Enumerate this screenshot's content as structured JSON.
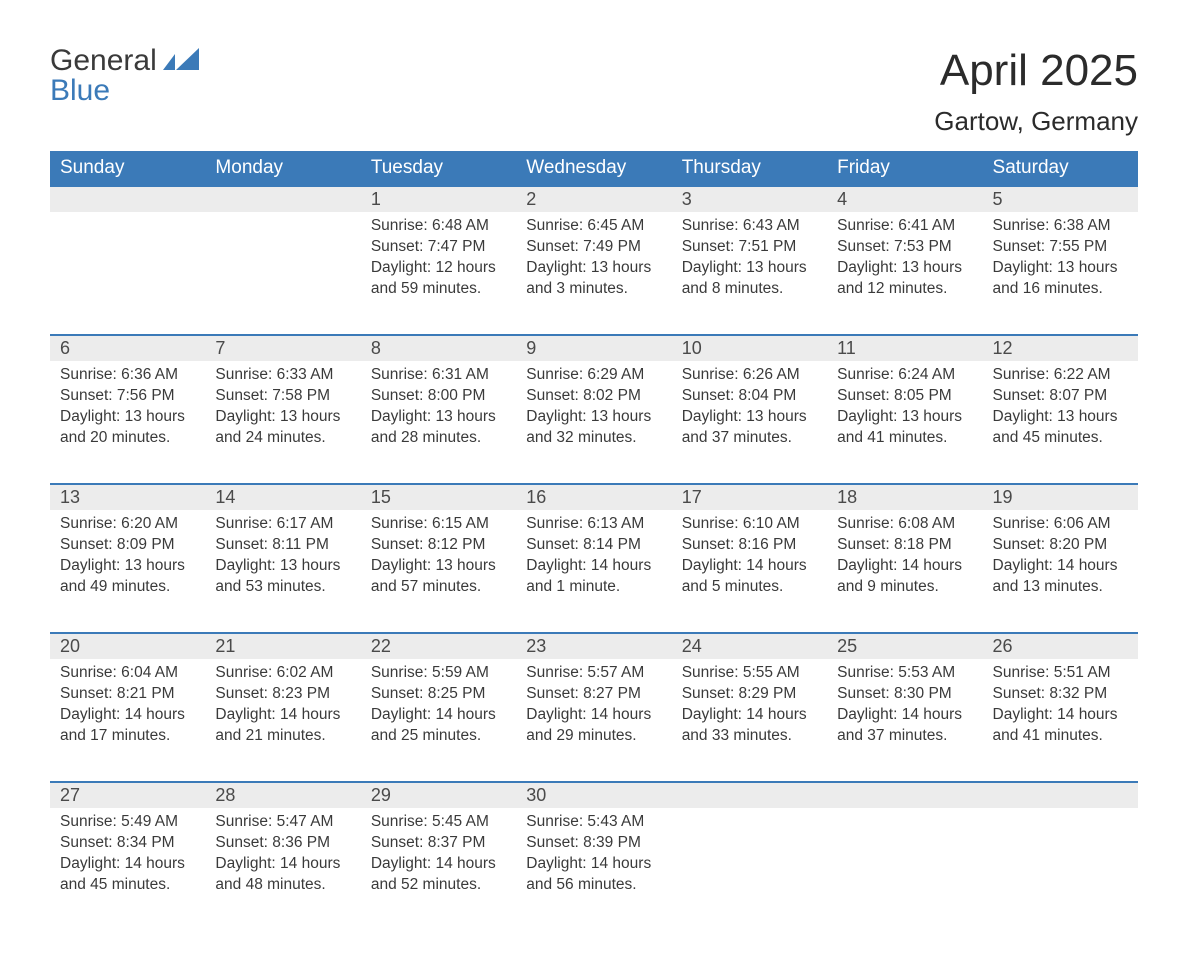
{
  "brand": {
    "word1": "General",
    "word2": "Blue",
    "text_color": "#3a3a3a",
    "accent_color": "#3b7ab8"
  },
  "header": {
    "month_title": "April 2025",
    "location": "Gartow, Germany"
  },
  "colors": {
    "header_bg": "#3b7ab8",
    "header_text": "#ffffff",
    "daynum_bg": "#ececec",
    "row_divider": "#3b7ab8",
    "body_text": "#3a3a3a",
    "page_bg": "#ffffff"
  },
  "typography": {
    "month_title_fontsize": 44,
    "location_fontsize": 26,
    "dayheader_fontsize": 19,
    "daynum_fontsize": 18,
    "body_fontsize": 15.5
  },
  "calendar": {
    "type": "table",
    "columns": [
      "Sunday",
      "Monday",
      "Tuesday",
      "Wednesday",
      "Thursday",
      "Friday",
      "Saturday"
    ],
    "first_weekday_index": 2,
    "days_in_month": 30,
    "weeks": [
      [
        null,
        null,
        {
          "n": "1",
          "sunrise": "6:48 AM",
          "sunset": "7:47 PM",
          "daylight": "12 hours and 59 minutes."
        },
        {
          "n": "2",
          "sunrise": "6:45 AM",
          "sunset": "7:49 PM",
          "daylight": "13 hours and 3 minutes."
        },
        {
          "n": "3",
          "sunrise": "6:43 AM",
          "sunset": "7:51 PM",
          "daylight": "13 hours and 8 minutes."
        },
        {
          "n": "4",
          "sunrise": "6:41 AM",
          "sunset": "7:53 PM",
          "daylight": "13 hours and 12 minutes."
        },
        {
          "n": "5",
          "sunrise": "6:38 AM",
          "sunset": "7:55 PM",
          "daylight": "13 hours and 16 minutes."
        }
      ],
      [
        {
          "n": "6",
          "sunrise": "6:36 AM",
          "sunset": "7:56 PM",
          "daylight": "13 hours and 20 minutes."
        },
        {
          "n": "7",
          "sunrise": "6:33 AM",
          "sunset": "7:58 PM",
          "daylight": "13 hours and 24 minutes."
        },
        {
          "n": "8",
          "sunrise": "6:31 AM",
          "sunset": "8:00 PM",
          "daylight": "13 hours and 28 minutes."
        },
        {
          "n": "9",
          "sunrise": "6:29 AM",
          "sunset": "8:02 PM",
          "daylight": "13 hours and 32 minutes."
        },
        {
          "n": "10",
          "sunrise": "6:26 AM",
          "sunset": "8:04 PM",
          "daylight": "13 hours and 37 minutes."
        },
        {
          "n": "11",
          "sunrise": "6:24 AM",
          "sunset": "8:05 PM",
          "daylight": "13 hours and 41 minutes."
        },
        {
          "n": "12",
          "sunrise": "6:22 AM",
          "sunset": "8:07 PM",
          "daylight": "13 hours and 45 minutes."
        }
      ],
      [
        {
          "n": "13",
          "sunrise": "6:20 AM",
          "sunset": "8:09 PM",
          "daylight": "13 hours and 49 minutes."
        },
        {
          "n": "14",
          "sunrise": "6:17 AM",
          "sunset": "8:11 PM",
          "daylight": "13 hours and 53 minutes."
        },
        {
          "n": "15",
          "sunrise": "6:15 AM",
          "sunset": "8:12 PM",
          "daylight": "13 hours and 57 minutes."
        },
        {
          "n": "16",
          "sunrise": "6:13 AM",
          "sunset": "8:14 PM",
          "daylight": "14 hours and 1 minute."
        },
        {
          "n": "17",
          "sunrise": "6:10 AM",
          "sunset": "8:16 PM",
          "daylight": "14 hours and 5 minutes."
        },
        {
          "n": "18",
          "sunrise": "6:08 AM",
          "sunset": "8:18 PM",
          "daylight": "14 hours and 9 minutes."
        },
        {
          "n": "19",
          "sunrise": "6:06 AM",
          "sunset": "8:20 PM",
          "daylight": "14 hours and 13 minutes."
        }
      ],
      [
        {
          "n": "20",
          "sunrise": "6:04 AM",
          "sunset": "8:21 PM",
          "daylight": "14 hours and 17 minutes."
        },
        {
          "n": "21",
          "sunrise": "6:02 AM",
          "sunset": "8:23 PM",
          "daylight": "14 hours and 21 minutes."
        },
        {
          "n": "22",
          "sunrise": "5:59 AM",
          "sunset": "8:25 PM",
          "daylight": "14 hours and 25 minutes."
        },
        {
          "n": "23",
          "sunrise": "5:57 AM",
          "sunset": "8:27 PM",
          "daylight": "14 hours and 29 minutes."
        },
        {
          "n": "24",
          "sunrise": "5:55 AM",
          "sunset": "8:29 PM",
          "daylight": "14 hours and 33 minutes."
        },
        {
          "n": "25",
          "sunrise": "5:53 AM",
          "sunset": "8:30 PM",
          "daylight": "14 hours and 37 minutes."
        },
        {
          "n": "26",
          "sunrise": "5:51 AM",
          "sunset": "8:32 PM",
          "daylight": "14 hours and 41 minutes."
        }
      ],
      [
        {
          "n": "27",
          "sunrise": "5:49 AM",
          "sunset": "8:34 PM",
          "daylight": "14 hours and 45 minutes."
        },
        {
          "n": "28",
          "sunrise": "5:47 AM",
          "sunset": "8:36 PM",
          "daylight": "14 hours and 48 minutes."
        },
        {
          "n": "29",
          "sunrise": "5:45 AM",
          "sunset": "8:37 PM",
          "daylight": "14 hours and 52 minutes."
        },
        {
          "n": "30",
          "sunrise": "5:43 AM",
          "sunset": "8:39 PM",
          "daylight": "14 hours and 56 minutes."
        },
        null,
        null,
        null
      ]
    ],
    "labels": {
      "sunrise_prefix": "Sunrise: ",
      "sunset_prefix": "Sunset: ",
      "daylight_prefix": "Daylight: "
    }
  }
}
